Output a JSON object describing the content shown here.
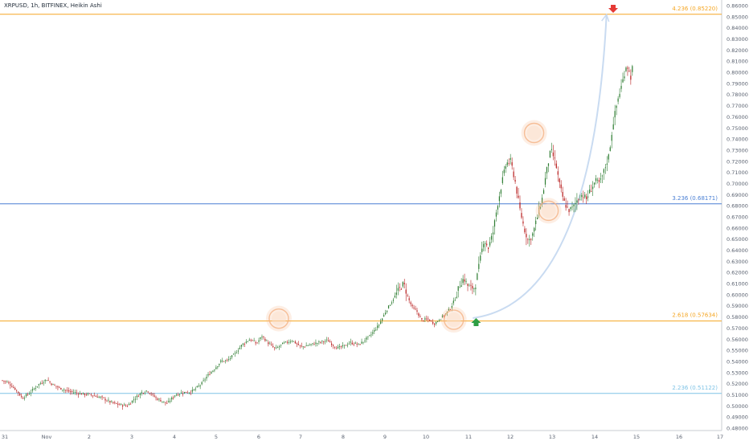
{
  "chart_data": {
    "type": "candlestick",
    "title": "XRPUSD, 1h, BITFINEX, Heikin Ashi",
    "colors": {
      "up": "#2e7d32",
      "down": "#b71c1c",
      "orange": "#f5a623",
      "blue": "#4a7fd4",
      "lightblue": "#7ec3e6",
      "halo": "#f4b183",
      "curve": "#c9dbf1",
      "arrow_up": "#2e9e44",
      "arrow_down": "#e53935",
      "axis": "#c8ccd2",
      "text": "#5a6270"
    },
    "y_ticks": [
      "0.86000",
      "0.85000",
      "0.84000",
      "0.83000",
      "0.82000",
      "0.81000",
      "0.80000",
      "0.79000",
      "0.78000",
      "0.77000",
      "0.76000",
      "0.75000",
      "0.74000",
      "0.73000",
      "0.72000",
      "0.71000",
      "0.70000",
      "0.69000",
      "0.68000",
      "0.67000",
      "0.66000",
      "0.65000",
      "0.64000",
      "0.63000",
      "0.62000",
      "0.61000",
      "0.60000",
      "0.59000",
      "0.58000",
      "0.57000",
      "0.56000",
      "0.55000",
      "0.54000",
      "0.53000",
      "0.52000",
      "0.51000",
      "0.50000",
      "0.49000",
      "0.48000"
    ],
    "x_ticks": [
      "31",
      "Nov",
      "2",
      "3",
      "4",
      "5",
      "6",
      "7",
      "8",
      "9",
      "10",
      "11",
      "12",
      "13",
      "14",
      "15",
      "16",
      "17"
    ],
    "levels": [
      {
        "label": "4.236 (0.85220)",
        "price": 0.8522,
        "color": "#f5a623"
      },
      {
        "label": "3.236 (0.68171)",
        "price": 0.68171,
        "color": "#4a7fd4"
      },
      {
        "label": "2.618 (0.57634)",
        "price": 0.57634,
        "color": "#f5a623"
      },
      {
        "label": "2.236 (0.51122)",
        "price": 0.51122,
        "color": "#7ec3e6"
      }
    ],
    "ylim": [
      0.48,
      0.86
    ],
    "anchors": [
      [
        0,
        0.523
      ],
      [
        5,
        0.521
      ],
      [
        12,
        0.515
      ],
      [
        18,
        0.507
      ],
      [
        25,
        0.512
      ],
      [
        32,
        0.519
      ],
      [
        40,
        0.524
      ],
      [
        45,
        0.519
      ],
      [
        52,
        0.516
      ],
      [
        60,
        0.513
      ],
      [
        70,
        0.511
      ],
      [
        80,
        0.51
      ],
      [
        90,
        0.507
      ],
      [
        98,
        0.503
      ],
      [
        105,
        0.501
      ],
      [
        112,
        0.5
      ],
      [
        118,
        0.506
      ],
      [
        125,
        0.512
      ],
      [
        130,
        0.514
      ],
      [
        138,
        0.507
      ],
      [
        148,
        0.502
      ],
      [
        155,
        0.51
      ],
      [
        162,
        0.512
      ],
      [
        170,
        0.513
      ],
      [
        178,
        0.519
      ],
      [
        184,
        0.527
      ],
      [
        190,
        0.533
      ],
      [
        196,
        0.54
      ],
      [
        202,
        0.541
      ],
      [
        208,
        0.546
      ],
      [
        215,
        0.555
      ],
      [
        222,
        0.56
      ],
      [
        228,
        0.556
      ],
      [
        233,
        0.563
      ],
      [
        238,
        0.557
      ],
      [
        245,
        0.551
      ],
      [
        252,
        0.556
      ],
      [
        260,
        0.559
      ],
      [
        268,
        0.553
      ],
      [
        276,
        0.555
      ],
      [
        284,
        0.557
      ],
      [
        292,
        0.559
      ],
      [
        300,
        0.552
      ],
      [
        305,
        0.553
      ],
      [
        312,
        0.557
      ],
      [
        320,
        0.555
      ],
      [
        330,
        0.563
      ],
      [
        338,
        0.573
      ],
      [
        344,
        0.585
      ],
      [
        350,
        0.595
      ],
      [
        356,
        0.605
      ],
      [
        360,
        0.61
      ],
      [
        364,
        0.597
      ],
      [
        368,
        0.588
      ],
      [
        372,
        0.585
      ],
      [
        376,
        0.577
      ],
      [
        382,
        0.578
      ],
      [
        388,
        0.574
      ],
      [
        392,
        0.578
      ],
      [
        398,
        0.583
      ],
      [
        402,
        0.588
      ],
      [
        406,
        0.596
      ],
      [
        410,
        0.608
      ],
      [
        414,
        0.615
      ],
      [
        418,
        0.607
      ],
      [
        424,
        0.606
      ],
      [
        428,
        0.628
      ],
      [
        432,
        0.65
      ],
      [
        436,
        0.642
      ],
      [
        440,
        0.655
      ],
      [
        444,
        0.68
      ],
      [
        448,
        0.7
      ],
      [
        452,
        0.718
      ],
      [
        456,
        0.72
      ],
      [
        460,
        0.702
      ],
      [
        464,
        0.678
      ],
      [
        468,
        0.66
      ],
      [
        472,
        0.648
      ],
      [
        476,
        0.655
      ],
      [
        480,
        0.67
      ],
      [
        484,
        0.685
      ],
      [
        488,
        0.71
      ],
      [
        492,
        0.73
      ],
      [
        496,
        0.72
      ],
      [
        500,
        0.698
      ],
      [
        504,
        0.683
      ],
      [
        508,
        0.676
      ],
      [
        512,
        0.678
      ],
      [
        516,
        0.686
      ],
      [
        520,
        0.69
      ],
      [
        524,
        0.686
      ],
      [
        528,
        0.695
      ],
      [
        532,
        0.702
      ],
      [
        536,
        0.7
      ],
      [
        540,
        0.712
      ],
      [
        544,
        0.725
      ],
      [
        548,
        0.755
      ],
      [
        552,
        0.775
      ],
      [
        556,
        0.79
      ],
      [
        560,
        0.808
      ],
      [
        564,
        0.795
      ],
      [
        566,
        0.81
      ]
    ],
    "x_domain": [
      0,
      566
    ],
    "arrows": [
      {
        "kind": "up",
        "x": 425,
        "price": 0.579,
        "color": "#2e9e44"
      },
      {
        "kind": "down",
        "x": 548,
        "price": 0.8535,
        "color": "#e53935"
      }
    ],
    "circles": [
      {
        "x": 248,
        "price": 0.5785
      },
      {
        "x": 405,
        "price": 0.5775
      },
      {
        "x": 477,
        "price": 0.7455
      },
      {
        "x": 490,
        "price": 0.6755
      }
    ],
    "curve": {
      "from_x": 422,
      "from_price": 0.579,
      "to_x": 542,
      "to_price": 0.852
    },
    "axis_extra_ticks": {
      "Nov": "Nov"
    }
  }
}
